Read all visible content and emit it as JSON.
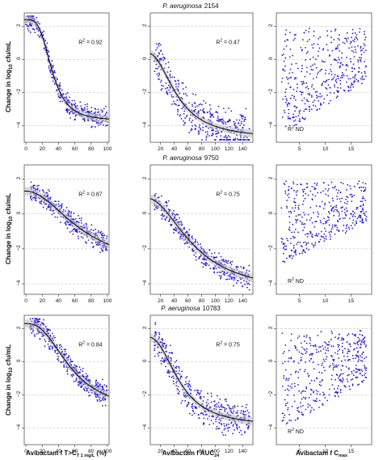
{
  "x_labels": [
    "Avibactam f T>C",
    "T 1 mg/L",
    "(%)",
    "Avibactam f AUC",
    "24",
    "Avibactam f C",
    "max"
  ],
  "y_label_parts": [
    "Change in log",
    "10",
    " cfu/mL"
  ],
  "row_titles": [
    {
      "species": "P. aeruginosa",
      "strain": "2154"
    },
    {
      "species": "P. aeruginosa",
      "strain": "9750"
    },
    {
      "species": "P. aeruginosa",
      "strain": "10783"
    }
  ],
  "colors": {
    "points": "#2b1bd6",
    "fit": "#000000",
    "band": "#b9b9b9",
    "grid": "#c8c8c8"
  },
  "chart_data": [
    {
      "type": "scatter",
      "row": 0,
      "col": 0,
      "xlim": [
        -2,
        102
      ],
      "ylim": [
        -5,
        2.8
      ],
      "xticks": [
        0,
        20,
        40,
        60,
        80,
        100
      ],
      "yticks": [
        -4,
        -2,
        0,
        2
      ],
      "r2": "0.92",
      "r2_label": "R",
      "r2_sup": "2",
      "r2_sep": " = ",
      "fit": {
        "kind": "sigmoid",
        "top": 2.4,
        "bottom": -3.7,
        "mid": 32,
        "hill": 3.5
      },
      "fit_band": true,
      "points_pattern": {
        "n": 380,
        "x_range": [
          0,
          100
        ],
        "scatter": 0.55,
        "seed": 11
      }
    },
    {
      "type": "scatter",
      "row": 0,
      "col": 1,
      "xlim": [
        5,
        155
      ],
      "ylim": [
        -5,
        2.8
      ],
      "xticks": [
        20,
        40,
        60,
        80,
        100,
        120,
        140
      ],
      "yticks": [
        -4,
        -2,
        0,
        2
      ],
      "r2": "0.47",
      "r2_label": "R",
      "r2_sup": "2",
      "r2_sep": " = ",
      "fit": {
        "kind": "sigmoid",
        "top": 0.4,
        "bottom": -4.8,
        "mid": 45,
        "hill": 2.2
      },
      "fit_band": true,
      "points_pattern": {
        "n": 420,
        "x_range": [
          10,
          150
        ],
        "scatter": 1.1,
        "seed": 23
      }
    },
    {
      "type": "scatter",
      "row": 0,
      "col": 2,
      "xlim": [
        0.5,
        19
      ],
      "ylim": [
        -5,
        2.8
      ],
      "xticks": [
        5,
        10,
        15
      ],
      "yticks": [
        -4,
        -2,
        0,
        2
      ],
      "r2": "ND",
      "r2_label": "R",
      "r2_sup": "2",
      "r2_sep": " ",
      "fit": null,
      "fit_band": false,
      "points_pattern": {
        "n": 420,
        "x_range": [
          1.5,
          18
        ],
        "scatter": 1.6,
        "seed": 37
      }
    },
    {
      "type": "scatter",
      "row": 1,
      "col": 0,
      "xlim": [
        -2,
        102
      ],
      "ylim": [
        -4.6,
        2.8
      ],
      "xticks": [
        0,
        20,
        40,
        60,
        80,
        100
      ],
      "yticks": [
        -4,
        -2,
        0,
        2
      ],
      "r2": "0.87",
      "r2_label": "R",
      "r2_sup": "2",
      "r2_sep": " = ",
      "fit": {
        "kind": "sigmoid",
        "top": 1.3,
        "bottom": -3.2,
        "mid": 70,
        "hill": 2.0
      },
      "fit_band": true,
      "points_pattern": {
        "n": 360,
        "x_range": [
          5,
          100
        ],
        "scatter": 0.5,
        "seed": 41
      }
    },
    {
      "type": "scatter",
      "row": 1,
      "col": 1,
      "xlim": [
        5,
        155
      ],
      "ylim": [
        -4.6,
        2.8
      ],
      "xticks": [
        20,
        40,
        60,
        80,
        100,
        120,
        140
      ],
      "yticks": [
        -4,
        -2,
        0,
        2
      ],
      "r2": "0.75",
      "r2_label": "R",
      "r2_sup": "2",
      "r2_sep": " = ",
      "fit": {
        "kind": "sigmoid",
        "top": 0.9,
        "bottom": -4.6,
        "mid": 70,
        "hill": 2.0
      },
      "fit_band": true,
      "points_pattern": {
        "n": 380,
        "x_range": [
          10,
          150
        ],
        "scatter": 0.6,
        "seed": 53
      }
    },
    {
      "type": "scatter",
      "row": 1,
      "col": 2,
      "xlim": [
        0.5,
        19
      ],
      "ylim": [
        -4.6,
        2.8
      ],
      "xticks": [
        5,
        10,
        15
      ],
      "yticks": [
        -4,
        -2,
        0,
        2
      ],
      "r2": "ND",
      "r2_label": "R",
      "r2_sup": "2",
      "r2_sep": " ",
      "fit": null,
      "fit_band": false,
      "points_pattern": {
        "n": 400,
        "x_range": [
          1.5,
          18
        ],
        "scatter": 1.2,
        "seed": 67
      }
    },
    {
      "type": "scatter",
      "row": 2,
      "col": 0,
      "xlim": [
        -2,
        102
      ],
      "ylim": [
        -5,
        2.8
      ],
      "xticks": [
        0,
        20,
        40,
        60,
        80,
        100
      ],
      "yticks": [
        -4,
        -2,
        0,
        2
      ],
      "r2": "0.84",
      "r2_label": "R",
      "r2_sup": "2",
      "r2_sep": " = ",
      "fit": {
        "kind": "sigmoid",
        "top": 2.3,
        "bottom": -3.0,
        "mid": 55,
        "hill": 2.5
      },
      "fit_band": true,
      "points_pattern": {
        "n": 400,
        "x_range": [
          5,
          100
        ],
        "scatter": 0.6,
        "seed": 71
      }
    },
    {
      "type": "scatter",
      "row": 2,
      "col": 1,
      "xlim": [
        5,
        155
      ],
      "ylim": [
        -5,
        2.8
      ],
      "xticks": [
        20,
        40,
        60,
        80,
        100,
        120,
        140
      ],
      "yticks": [
        -4,
        -2,
        0,
        2
      ],
      "r2": "0.75",
      "r2_label": "R",
      "r2_sup": "2",
      "r2_sep": " = ",
      "fit": {
        "kind": "sigmoid",
        "top": 1.5,
        "bottom": -3.9,
        "mid": 48,
        "hill": 2.4
      },
      "fit_band": true,
      "points_pattern": {
        "n": 420,
        "x_range": [
          10,
          150
        ],
        "scatter": 0.9,
        "seed": 83
      }
    },
    {
      "type": "scatter",
      "row": 2,
      "col": 2,
      "xlim": [
        0.5,
        19
      ],
      "ylim": [
        -5,
        2.8
      ],
      "xticks": [
        5,
        10,
        15
      ],
      "yticks": [
        -4,
        -2,
        0,
        2
      ],
      "r2": "ND",
      "r2_label": "R",
      "r2_sup": "2",
      "r2_sep": " ",
      "fit": null,
      "fit_band": false,
      "points_pattern": {
        "n": 420,
        "x_range": [
          1.5,
          18
        ],
        "scatter": 1.5,
        "seed": 97
      }
    }
  ]
}
